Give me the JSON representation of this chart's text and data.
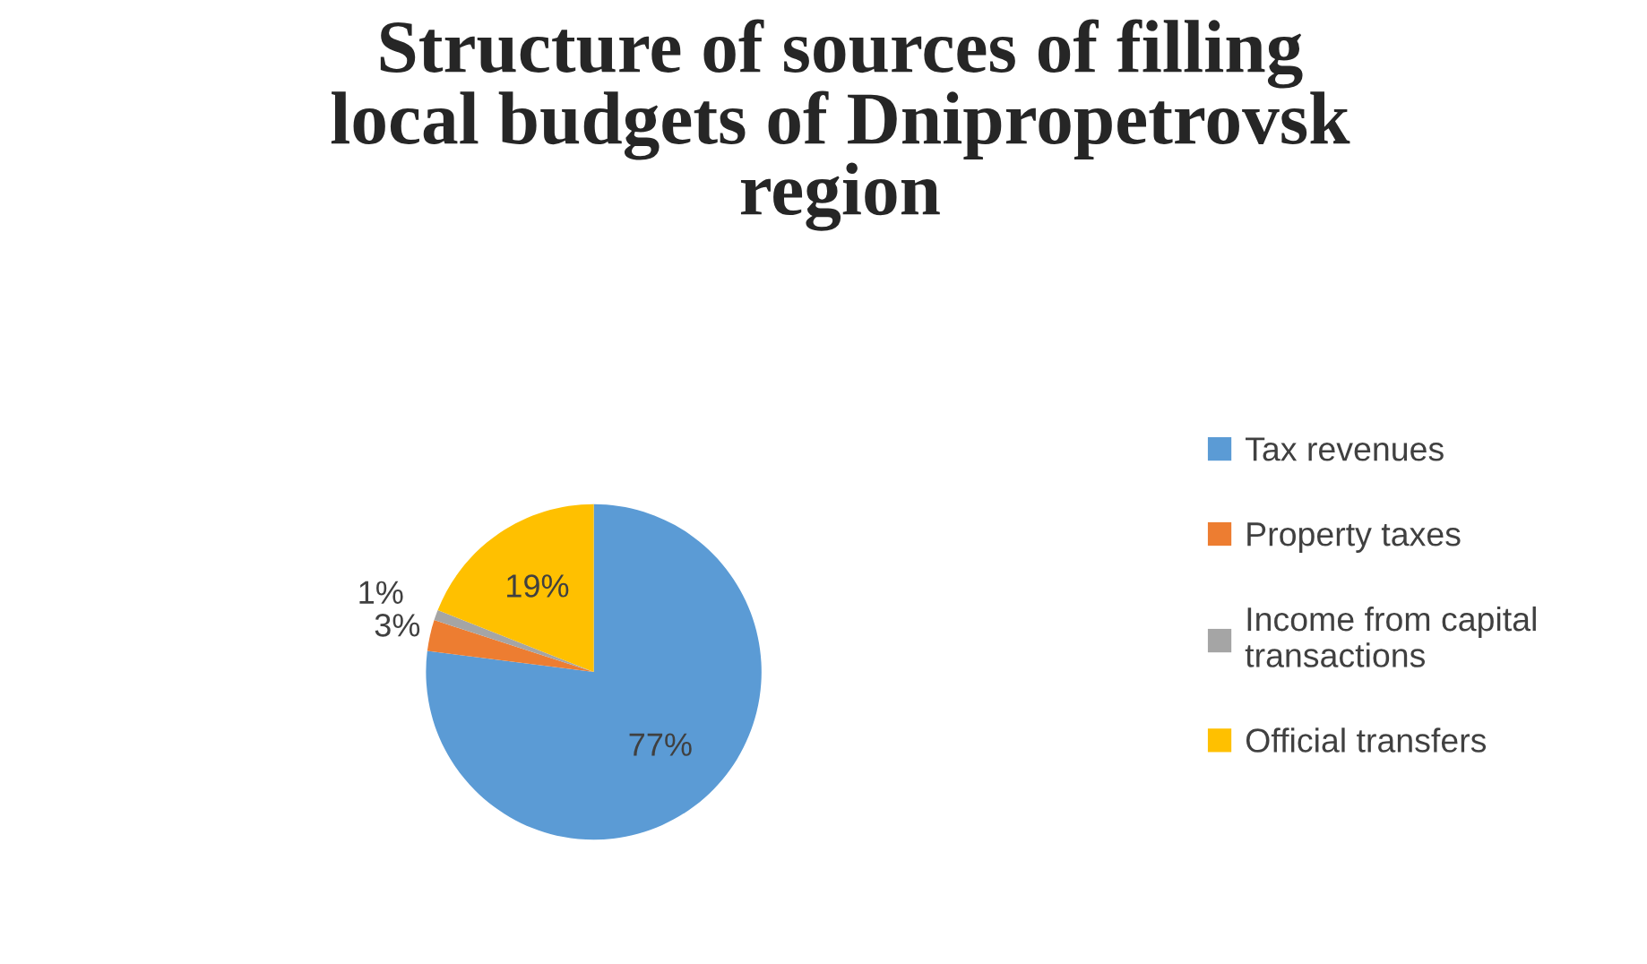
{
  "chart_data": {
    "type": "pie",
    "title": "Structure of sources of filling\nlocal budgets of Dnipropetrovsk\nregion",
    "categories": [
      "Tax revenues",
      "Property taxes",
      "Income from capital\ntransactions",
      "Official transfers"
    ],
    "values": [
      77,
      3,
      1,
      19
    ],
    "colors": [
      "#5b9bd5",
      "#ed7d31",
      "#a5a5a5",
      "#ffc000"
    ],
    "value_labels": [
      "77%",
      "3%",
      "1%",
      "19%"
    ],
    "legend": "right"
  }
}
